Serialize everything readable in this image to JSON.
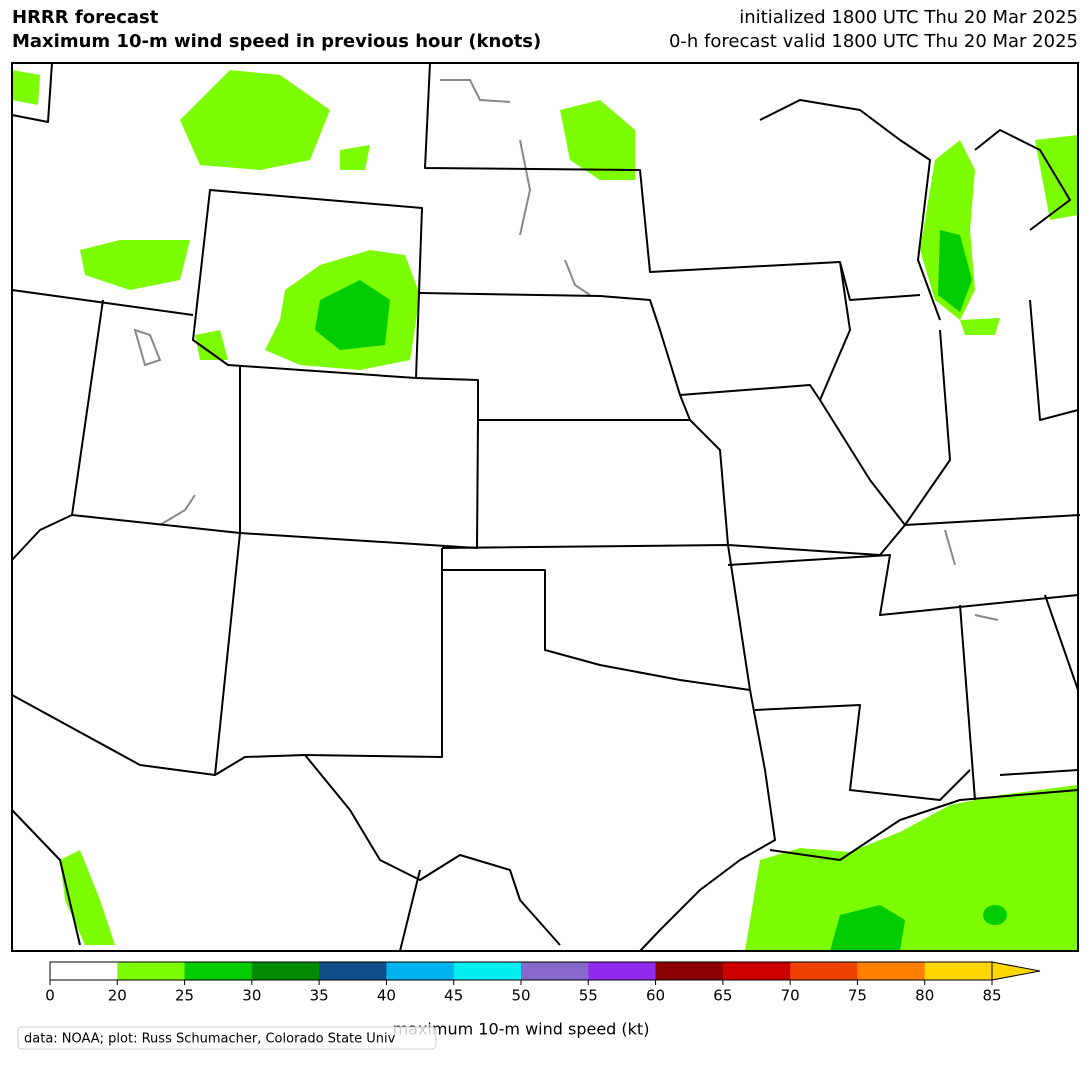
{
  "header": {
    "title": "HRRR forecast",
    "subtitle": "Maximum 10-m wind speed in previous hour (knots)",
    "initialized": "initialized 1800 UTC Thu 20 Mar 2025",
    "valid": "0-h forecast valid 1800 UTC Thu 20 Mar 2025"
  },
  "colorbar": {
    "label": "maximum 10-m wind speed (kt)",
    "bounds": [
      0,
      20,
      25,
      30,
      35,
      40,
      45,
      50,
      55,
      60,
      65,
      70,
      75,
      80,
      85
    ],
    "colors": [
      "#ffffff",
      "#7cfc00",
      "#00cd00",
      "#008b00",
      "#104e8b",
      "#00b2ee",
      "#00eeee",
      "#8968cd",
      "#912cee",
      "#8b0000",
      "#cd0000",
      "#ee4000",
      "#ff7f00",
      "#ffd700"
    ],
    "over_color": "#ffd700"
  },
  "credit": "data: NOAA; plot: Russ Schumacher, Colorado State Univ"
}
